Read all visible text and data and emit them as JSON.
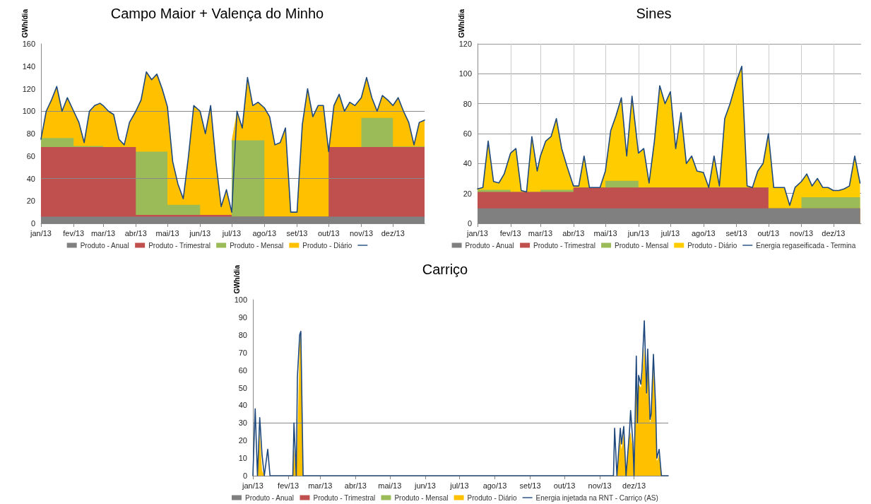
{
  "chart_data": [
    {
      "type": "area",
      "title": "Campo Maior + Valença do Minho",
      "ylabel": "GWh/dia",
      "stacked": true,
      "grid": false,
      "legend": "bottom",
      "x": [
        "2013-01-01",
        "2013-01-06",
        "2013-01-11",
        "2013-01-16",
        "2013-01-21",
        "2013-01-26",
        "2013-02-01",
        "2013-02-01",
        "2013-02-06",
        "2013-02-11",
        "2013-02-16",
        "2013-02-21",
        "2013-02-26",
        "2013-03-01",
        "2013-03-01",
        "2013-03-06",
        "2013-03-11",
        "2013-03-16",
        "2013-03-21",
        "2013-03-26",
        "2013-04-01",
        "2013-04-01",
        "2013-04-06",
        "2013-04-11",
        "2013-04-16",
        "2013-04-21",
        "2013-04-26",
        "2013-05-01",
        "2013-05-01",
        "2013-05-06",
        "2013-05-11",
        "2013-05-16",
        "2013-05-21",
        "2013-05-26",
        "2013-06-01",
        "2013-06-01",
        "2013-06-06",
        "2013-06-11",
        "2013-06-16",
        "2013-06-21",
        "2013-06-26",
        "2013-07-01",
        "2013-07-01",
        "2013-07-06",
        "2013-07-11",
        "2013-07-16",
        "2013-07-21",
        "2013-07-26",
        "2013-08-01",
        "2013-08-01",
        "2013-08-06",
        "2013-08-11",
        "2013-08-16",
        "2013-08-21",
        "2013-08-26",
        "2013-09-01",
        "2013-09-01",
        "2013-09-06",
        "2013-09-11",
        "2013-09-16",
        "2013-09-21",
        "2013-09-26",
        "2013-10-01",
        "2013-10-01",
        "2013-10-06",
        "2013-10-11",
        "2013-10-16",
        "2013-10-21",
        "2013-10-26",
        "2013-11-01",
        "2013-11-01",
        "2013-11-06",
        "2013-11-11",
        "2013-11-16",
        "2013-11-21",
        "2013-11-26",
        "2013-12-01",
        "2013-12-01",
        "2013-12-06",
        "2013-12-11",
        "2013-12-16",
        "2013-12-21",
        "2013-12-26",
        "2013-12-31"
      ],
      "xlim": [
        "2013-01-01",
        "2013-12-31"
      ],
      "xticks": [
        {
          "value": "2013-01-01",
          "label": "jan/13"
        },
        {
          "value": "2013-02-01",
          "label": "fev/13"
        },
        {
          "value": "2013-03-01",
          "label": "mar/13"
        },
        {
          "value": "2013-04-01",
          "label": "abr/13"
        },
        {
          "value": "2013-05-01",
          "label": "mai/13"
        },
        {
          "value": "2013-06-01",
          "label": "jun/13"
        },
        {
          "value": "2013-07-01",
          "label": "jul/13"
        },
        {
          "value": "2013-08-01",
          "label": "ago/13"
        },
        {
          "value": "2013-09-01",
          "label": "set/13"
        },
        {
          "value": "2013-10-01",
          "label": "out/13"
        },
        {
          "value": "2013-11-01",
          "label": "nov/13"
        },
        {
          "value": "2013-12-01",
          "label": "dez/13"
        }
      ],
      "ylim": [
        0,
        160
      ],
      "yticks": [
        0,
        20,
        40,
        60,
        80,
        100,
        120,
        140,
        160
      ],
      "ref_lines": [
        {
          "axis": "y",
          "value": 40,
          "color": "#888888"
        },
        {
          "axis": "y",
          "value": 100,
          "color": "#888888"
        }
      ],
      "series": [
        {
          "name": "Produto - Anual",
          "color": "#808080",
          "values": [
            6,
            6,
            6,
            6,
            6,
            6,
            6,
            6,
            6,
            6,
            6,
            6,
            6,
            6,
            6,
            6,
            6,
            6,
            6,
            6,
            6,
            6,
            6,
            6,
            6,
            6,
            6,
            6,
            6,
            6,
            6,
            6,
            6,
            6,
            6,
            6,
            6,
            6,
            6,
            6,
            6,
            6,
            6,
            6,
            6,
            6,
            6,
            6,
            6,
            6,
            6,
            6,
            6,
            6,
            6,
            6,
            6,
            6,
            6,
            6,
            6,
            6,
            6,
            6,
            6,
            6,
            6,
            6,
            6,
            6,
            6,
            6,
            6,
            6,
            6,
            6,
            6,
            6,
            6,
            6,
            6,
            6,
            6,
            6
          ]
        },
        {
          "name": "Produto - Trimestral",
          "color": "#c0504d",
          "values": [
            62,
            62,
            62,
            62,
            62,
            62,
            62,
            62,
            62,
            62,
            62,
            62,
            62,
            62,
            62,
            62,
            62,
            62,
            62,
            62,
            62,
            1.5,
            1.5,
            1.5,
            1.5,
            1.5,
            1.5,
            1.5,
            1.5,
            1.5,
            1.5,
            1.5,
            1.5,
            1.5,
            1.5,
            1.5,
            1.5,
            1.5,
            1.5,
            1.5,
            1.5,
            1.5,
            0,
            0,
            0,
            0,
            0,
            0,
            0,
            0,
            0,
            0,
            0,
            0,
            0,
            0,
            0,
            0,
            0,
            0,
            0,
            0,
            0,
            62,
            62,
            62,
            62,
            62,
            62,
            62,
            62,
            62,
            62,
            62,
            62,
            62,
            62,
            62,
            62,
            62,
            62,
            62,
            62,
            62
          ]
        },
        {
          "name": "Produto - Mensal",
          "color": "#9bbb59",
          "values": [
            8,
            8,
            8,
            8,
            8,
            8,
            8,
            1,
            1,
            1,
            1,
            1,
            1,
            1,
            0,
            0,
            0,
            0,
            0,
            0,
            0,
            56.5,
            56.5,
            56.5,
            56.5,
            56.5,
            56.5,
            56.5,
            9,
            9,
            9,
            9,
            9,
            9,
            9,
            0,
            0,
            0,
            0,
            0,
            0,
            0,
            68,
            68,
            68,
            68,
            68,
            68,
            68,
            0,
            0,
            0,
            0,
            0,
            0,
            0,
            0,
            0,
            0,
            0,
            0,
            0,
            0,
            0,
            0,
            0,
            0,
            0,
            0,
            0,
            26,
            26,
            26,
            26,
            26,
            26,
            26,
            0.5,
            0.5,
            0.5,
            0.5,
            0.5,
            0.5,
            0.5
          ]
        },
        {
          "name": "Produto - Diário",
          "color": "#ffc000",
          "values": [
            0,
            24,
            34,
            46,
            24,
            36,
            24,
            31,
            21,
            3,
            31,
            36,
            38,
            36,
            37,
            32,
            29,
            7,
            2,
            22,
            32,
            36,
            46,
            71,
            64,
            69,
            56,
            40,
            87.5,
            38.5,
            18.5,
            5.5,
            43.5,
            88.5,
            83.5,
            92.5,
            72.5,
            97.5,
            47.5,
            7.5,
            22.5,
            2.5,
            0,
            26,
            11,
            56,
            31,
            34,
            29,
            97,
            89,
            64,
            66,
            79,
            4,
            4,
            4,
            82,
            114,
            89,
            99,
            99,
            58,
            0,
            37,
            47,
            32,
            40,
            37,
            44,
            18,
            36,
            18,
            6,
            20,
            16,
            11,
            36.5,
            43.5,
            31.5,
            21.5,
            1.5,
            21.5,
            23.5
          ]
        },
        {
          "type": "line",
          "color": "#1f497d",
          "values": [
            75,
            100,
            110,
            122,
            100,
            112,
            100,
            100,
            90,
            72,
            100,
            105,
            107,
            105,
            105,
            100,
            97,
            75,
            70,
            90,
            100,
            100,
            110,
            135,
            128,
            133,
            120,
            104,
            104,
            55,
            35,
            22,
            60,
            105,
            100,
            100,
            80,
            105,
            55,
            15,
            30,
            10,
            10,
            100,
            85,
            130,
            105,
            108,
            103,
            103,
            95,
            70,
            72,
            85,
            10,
            10,
            10,
            88,
            120,
            95,
            105,
            105,
            64,
            64,
            105,
            115,
            100,
            108,
            105,
            112,
            112,
            130,
            112,
            100,
            114,
            110,
            105,
            105,
            112,
            100,
            90,
            70,
            90,
            92
          ]
        }
      ]
    },
    {
      "type": "area",
      "title": "Sines",
      "ylabel": "GWh/dia",
      "stacked": true,
      "grid": true,
      "legend": "bottom",
      "x": [
        "2013-01-01",
        "2013-01-06",
        "2013-01-11",
        "2013-01-16",
        "2013-01-21",
        "2013-01-26",
        "2013-02-01",
        "2013-02-01",
        "2013-02-06",
        "2013-02-11",
        "2013-02-16",
        "2013-02-21",
        "2013-02-26",
        "2013-03-01",
        "2013-03-01",
        "2013-03-06",
        "2013-03-11",
        "2013-03-16",
        "2013-03-21",
        "2013-03-26",
        "2013-04-01",
        "2013-04-01",
        "2013-04-06",
        "2013-04-11",
        "2013-04-16",
        "2013-04-21",
        "2013-04-26",
        "2013-05-01",
        "2013-05-01",
        "2013-05-06",
        "2013-05-11",
        "2013-05-16",
        "2013-05-21",
        "2013-05-26",
        "2013-06-01",
        "2013-06-01",
        "2013-06-06",
        "2013-06-11",
        "2013-06-16",
        "2013-06-21",
        "2013-06-26",
        "2013-07-01",
        "2013-07-01",
        "2013-07-06",
        "2013-07-11",
        "2013-07-16",
        "2013-07-21",
        "2013-07-26",
        "2013-08-01",
        "2013-08-01",
        "2013-08-06",
        "2013-08-11",
        "2013-08-16",
        "2013-08-21",
        "2013-08-26",
        "2013-09-01",
        "2013-09-01",
        "2013-09-06",
        "2013-09-11",
        "2013-09-16",
        "2013-09-21",
        "2013-09-26",
        "2013-10-01",
        "2013-10-01",
        "2013-10-06",
        "2013-10-11",
        "2013-10-16",
        "2013-10-21",
        "2013-10-26",
        "2013-11-01",
        "2013-11-01",
        "2013-11-06",
        "2013-11-11",
        "2013-11-16",
        "2013-11-21",
        "2013-11-26",
        "2013-12-01",
        "2013-12-01",
        "2013-12-06",
        "2013-12-11",
        "2013-12-16",
        "2013-12-21",
        "2013-12-26"
      ],
      "xlim": [
        "2013-01-01",
        "2013-12-27"
      ],
      "xticks": [
        {
          "value": "2013-01-01",
          "label": "jan/13"
        },
        {
          "value": "2013-02-01",
          "label": "fev/13"
        },
        {
          "value": "2013-03-01",
          "label": "mar/13"
        },
        {
          "value": "2013-04-01",
          "label": "abr/13"
        },
        {
          "value": "2013-05-01",
          "label": "mai/13"
        },
        {
          "value": "2013-06-01",
          "label": "jun/13"
        },
        {
          "value": "2013-07-01",
          "label": "jul/13"
        },
        {
          "value": "2013-08-01",
          "label": "ago/13"
        },
        {
          "value": "2013-09-01",
          "label": "set/13"
        },
        {
          "value": "2013-10-01",
          "label": "out/13"
        },
        {
          "value": "2013-11-01",
          "label": "nov/13"
        },
        {
          "value": "2013-12-01",
          "label": "dez/13"
        }
      ],
      "ylim": [
        0,
        120
      ],
      "yticks": [
        0,
        20,
        40,
        60,
        80,
        100,
        120
      ],
      "series": [
        {
          "name": "Produto - Anual",
          "color": "#808080",
          "values": [
            10,
            10,
            10,
            10,
            10,
            10,
            10,
            10,
            10,
            10,
            10,
            10,
            10,
            10,
            10,
            10,
            10,
            10,
            10,
            10,
            10,
            10,
            10,
            10,
            10,
            10,
            10,
            10,
            10,
            10,
            10,
            10,
            10,
            10,
            10,
            10,
            10,
            10,
            10,
            10,
            10,
            10,
            10,
            10,
            10,
            10,
            10,
            10,
            10,
            10,
            10,
            10,
            10,
            10,
            10,
            10,
            10,
            10,
            10,
            10,
            10,
            10,
            10,
            10,
            10,
            10,
            10,
            10,
            10,
            10,
            10,
            10,
            10,
            10,
            10,
            10,
            10,
            10,
            10,
            10,
            10,
            10,
            10
          ]
        },
        {
          "name": "Produto - Trimestral",
          "color": "#c0504d",
          "values": [
            11,
            11,
            11,
            11,
            11,
            11,
            11,
            11,
            11,
            11,
            11,
            11,
            11,
            11,
            11,
            11,
            11,
            11,
            11,
            11,
            11,
            14,
            14,
            14,
            14,
            14,
            14,
            14,
            14,
            14,
            14,
            14,
            14,
            14,
            14,
            14,
            14,
            14,
            14,
            14,
            14,
            14,
            14,
            14,
            14,
            14,
            14,
            14,
            14,
            14,
            14,
            14,
            14,
            14,
            14,
            14,
            14,
            14,
            14,
            14,
            14,
            14,
            14,
            0,
            0,
            0,
            0,
            0,
            0,
            0,
            0,
            0,
            0,
            0,
            0,
            0,
            0,
            0,
            0,
            0,
            0,
            0,
            0
          ]
        },
        {
          "name": "Produto - Mensal",
          "color": "#9bbb59",
          "values": [
            1.5,
            1.5,
            1.5,
            1.5,
            1.5,
            1.5,
            1.5,
            0,
            0,
            0,
            0,
            0,
            0,
            0,
            1.5,
            1.5,
            1.5,
            1.5,
            1.5,
            1.5,
            1.5,
            0,
            0,
            0,
            0,
            0,
            0,
            0,
            4.5,
            4.5,
            4.5,
            4.5,
            4.5,
            4.5,
            4.5,
            0,
            0,
            0,
            0,
            0,
            0,
            0,
            0,
            0,
            0,
            0,
            0,
            0,
            0,
            0,
            0,
            0,
            0,
            0,
            0,
            0,
            0,
            0,
            0,
            0,
            0,
            0,
            0,
            0,
            0,
            0,
            0,
            0,
            0,
            0,
            7.5,
            7.5,
            7.5,
            7.5,
            7.5,
            7.5,
            7.5,
            7.5,
            7.5,
            7.5,
            7.5,
            7.5,
            7.5
          ]
        },
        {
          "name": "Produto - Diário",
          "color": "#ffcc00",
          "values": [
            0.5,
            1.5,
            32.5,
            5.5,
            4.5,
            10.5,
            24.5,
            26,
            29,
            1,
            0,
            37,
            14,
            24,
            22.5,
            32.5,
            35.5,
            47.5,
            27.5,
            15.5,
            2.5,
            1,
            1,
            21,
            0,
            0,
            0,
            11,
            6.5,
            33.5,
            43.5,
            55.5,
            16.5,
            56.5,
            18.5,
            23,
            26,
            3,
            31,
            68,
            56,
            64,
            64,
            26,
            50,
            16,
            21,
            11,
            10,
            10,
            0,
            21,
            1,
            46,
            56,
            71,
            71,
            81,
            1,
            0,
            11,
            16,
            36,
            50,
            14,
            14,
            14,
            2,
            14,
            18,
            10.5,
            15.5,
            7.5,
            12.5,
            6.5,
            6.5,
            4.5,
            4.5,
            4.5,
            5.5,
            7.5,
            27.5,
            9.5
          ]
        },
        {
          "type": "line",
          "name": "Energia regaseificada - Termina",
          "color": "#1f497d",
          "values": [
            23,
            24,
            55,
            28,
            27,
            33,
            47,
            47,
            50,
            22,
            21,
            58,
            35,
            45,
            45,
            55,
            58,
            70,
            50,
            38,
            25,
            25,
            25,
            45,
            24,
            24,
            24,
            35,
            35,
            62,
            72,
            84,
            45,
            85,
            47,
            47,
            50,
            27,
            55,
            92,
            80,
            88,
            88,
            50,
            74,
            40,
            45,
            35,
            34,
            34,
            24,
            45,
            25,
            70,
            80,
            95,
            95,
            105,
            25,
            24,
            35,
            40,
            60,
            60,
            24,
            24,
            24,
            12,
            24,
            28,
            28,
            33,
            25,
            30,
            24,
            24,
            22,
            22,
            22,
            23,
            25,
            45,
            27
          ]
        }
      ]
    },
    {
      "type": "area",
      "title": "Carriço",
      "ylabel": "GWh/dia",
      "stacked": true,
      "grid": false,
      "legend": "bottom",
      "x": [
        "2013-01-01",
        "2013-01-03",
        "2013-01-05",
        "2013-01-07",
        "2013-01-09",
        "2013-01-11",
        "2013-01-14",
        "2013-01-16",
        "2013-02-05",
        "2013-02-06",
        "2013-02-08",
        "2013-02-09",
        "2013-02-11",
        "2013-02-12",
        "2013-02-14",
        "2013-11-13",
        "2013-11-14",
        "2013-11-16",
        "2013-11-19",
        "2013-11-20",
        "2013-11-22",
        "2013-11-24",
        "2013-11-27",
        "2013-11-28",
        "2013-11-30",
        "2013-12-01",
        "2013-12-03",
        "2013-12-04",
        "2013-12-05",
        "2013-12-07",
        "2013-12-08",
        "2013-12-10",
        "2013-12-12",
        "2013-12-13",
        "2013-12-15",
        "2013-12-16",
        "2013-12-18",
        "2013-12-20",
        "2013-12-21",
        "2013-12-23",
        "2013-12-25",
        "2013-12-31"
      ],
      "xlim": [
        "2013-01-01",
        "2013-12-31"
      ],
      "xticks": [
        {
          "value": "2013-01-01",
          "label": "jan/13"
        },
        {
          "value": "2013-02-01",
          "label": "fev/13"
        },
        {
          "value": "2013-03-01",
          "label": "mar/13"
        },
        {
          "value": "2013-04-01",
          "label": "abr/13"
        },
        {
          "value": "2013-05-01",
          "label": "mai/13"
        },
        {
          "value": "2013-06-01",
          "label": "jun/13"
        },
        {
          "value": "2013-07-01",
          "label": "jul/13"
        },
        {
          "value": "2013-08-01",
          "label": "ago/13"
        },
        {
          "value": "2013-09-01",
          "label": "set/13"
        },
        {
          "value": "2013-10-01",
          "label": "out/13"
        },
        {
          "value": "2013-11-01",
          "label": "nov/13"
        },
        {
          "value": "2013-12-01",
          "label": "dez/13"
        }
      ],
      "ylim": [
        0,
        100
      ],
      "yticks": [
        0,
        10,
        20,
        30,
        40,
        50,
        60,
        70,
        80,
        90,
        100
      ],
      "ref_lines": [
        {
          "axis": "y",
          "value": 30,
          "color": "#888888"
        }
      ],
      "series": [
        {
          "name": "Produto - Anual",
          "color": "#808080",
          "values": [
            null,
            null,
            null,
            null,
            null,
            null,
            null,
            null,
            null,
            null,
            null,
            null,
            null,
            null,
            null,
            null,
            null,
            null,
            null,
            null,
            null,
            null,
            null,
            null,
            null,
            null,
            null,
            null,
            null,
            null,
            null,
            null,
            null,
            null,
            null,
            null,
            null,
            null,
            null,
            null,
            null,
            null
          ]
        },
        {
          "name": "Produto - Trimestral",
          "color": "#c0504d",
          "values": [
            null,
            null,
            null,
            null,
            null,
            null,
            null,
            null,
            null,
            null,
            null,
            null,
            null,
            null,
            null,
            null,
            null,
            null,
            null,
            null,
            null,
            null,
            null,
            null,
            null,
            null,
            null,
            null,
            null,
            null,
            null,
            null,
            null,
            null,
            null,
            null,
            null,
            null,
            null,
            null,
            null,
            null
          ]
        },
        {
          "name": "Produto - Mensal",
          "color": "#9bbb59",
          "values": [
            null,
            null,
            null,
            null,
            null,
            null,
            null,
            null,
            null,
            null,
            null,
            null,
            null,
            null,
            null,
            null,
            null,
            null,
            null,
            null,
            null,
            null,
            null,
            null,
            null,
            null,
            null,
            null,
            null,
            null,
            null,
            null,
            null,
            null,
            null,
            null,
            null,
            null,
            null,
            null,
            null,
            null
          ]
        },
        {
          "name": "Produto - Diário",
          "color": "#ffc000",
          "values": [
            0,
            0,
            0,
            25,
            3,
            0,
            0,
            0,
            0,
            15,
            0,
            20,
            75,
            80,
            0,
            0,
            0,
            0,
            22,
            15,
            24,
            0,
            22,
            25,
            15,
            0,
            55,
            28,
            52,
            50,
            55,
            73,
            45,
            65,
            30,
            33,
            62,
            35,
            8,
            12,
            0,
            0
          ]
        },
        {
          "type": "line",
          "name": "Energia injetada na RNT - Carriço (AS)",
          "color": "#1f497d",
          "values": [
            0,
            38,
            0,
            33,
            12,
            0,
            15,
            0,
            0,
            30,
            0,
            56,
            80,
            82,
            0,
            0,
            27,
            0,
            27,
            18,
            28,
            0,
            25,
            37,
            19,
            0,
            68,
            30,
            57,
            52,
            60,
            88,
            47,
            72,
            32,
            35,
            69,
            38,
            10,
            15,
            0,
            0
          ]
        }
      ]
    }
  ]
}
